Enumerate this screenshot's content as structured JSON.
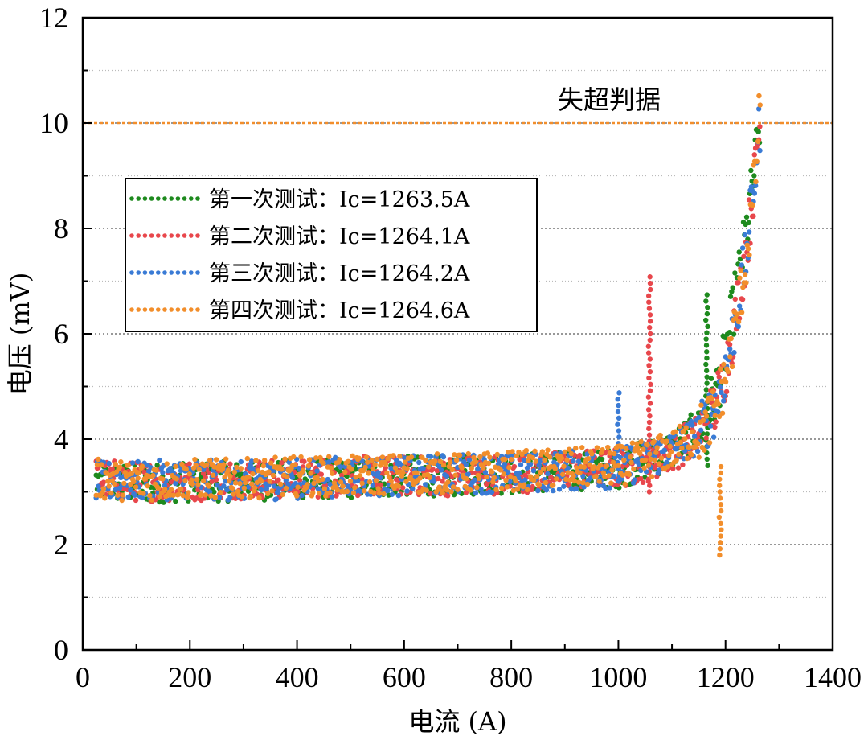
{
  "chart_data": {
    "type": "scatter",
    "title": "",
    "xlabel": "电流 (A)",
    "ylabel": "电压 (mV)",
    "xlim": [
      0,
      1400
    ],
    "ylim": [
      0,
      12
    ],
    "xticks": [
      0,
      200,
      400,
      600,
      800,
      1000,
      1200,
      1400
    ],
    "yticks": [
      0,
      2,
      4,
      6,
      8,
      10,
      12
    ],
    "xtick_labels": [
      "0",
      "200",
      "400",
      "600",
      "800",
      "1000",
      "1200",
      "1400"
    ],
    "ytick_labels": [
      "0",
      "2",
      "4",
      "6",
      "8",
      "10",
      "12"
    ],
    "grid": "horizontal dotted",
    "legend_position": "upper-left",
    "threshold": {
      "y": 10,
      "label": "失超判据",
      "color": "#f28e2b"
    },
    "series": [
      {
        "name": "第一次测试：Ic=1263.5A",
        "color": "#1e8a1e",
        "x": [
          25,
          100,
          200,
          300,
          400,
          500,
          600,
          700,
          800,
          900,
          1000,
          1050,
          1100,
          1150,
          1180,
          1200,
          1220,
          1240,
          1255,
          1263.5
        ],
        "y": [
          3.2,
          3.15,
          3.2,
          3.2,
          3.25,
          3.25,
          3.3,
          3.3,
          3.35,
          3.4,
          3.45,
          3.6,
          3.8,
          4.2,
          4.8,
          5.6,
          6.8,
          8.0,
          9.2,
          10.0
        ]
      },
      {
        "name": "第二次测试：Ic=1264.1A",
        "color": "#e8474c",
        "x": [
          25,
          100,
          200,
          300,
          400,
          500,
          600,
          700,
          800,
          900,
          1000,
          1050,
          1100,
          1150,
          1180,
          1200,
          1220,
          1240,
          1255,
          1264.1
        ],
        "y": [
          3.25,
          3.2,
          3.2,
          3.25,
          3.25,
          3.3,
          3.3,
          3.3,
          3.35,
          3.4,
          3.45,
          3.55,
          3.75,
          4.1,
          4.6,
          5.3,
          6.4,
          7.7,
          9.0,
          10.0
        ]
      },
      {
        "name": "第三次测试：Ic=1264.2A",
        "color": "#3a7bd5",
        "x": [
          25,
          100,
          200,
          300,
          400,
          500,
          600,
          700,
          800,
          900,
          1000,
          1050,
          1100,
          1150,
          1180,
          1200,
          1220,
          1240,
          1255,
          1264.2
        ],
        "y": [
          3.2,
          3.2,
          3.25,
          3.2,
          3.25,
          3.3,
          3.3,
          3.35,
          3.35,
          3.4,
          3.45,
          3.6,
          3.8,
          4.1,
          4.6,
          5.3,
          6.3,
          7.6,
          9.0,
          10.0
        ]
      },
      {
        "name": "第四次测试：Ic=1264.6A",
        "color": "#f28e2b",
        "x": [
          25,
          100,
          200,
          300,
          400,
          500,
          600,
          700,
          800,
          900,
          1000,
          1050,
          1100,
          1150,
          1180,
          1200,
          1220,
          1240,
          1255,
          1264.6
        ],
        "y": [
          3.25,
          3.2,
          3.25,
          3.25,
          3.3,
          3.3,
          3.35,
          3.35,
          3.4,
          3.45,
          3.5,
          3.6,
          3.8,
          4.1,
          4.5,
          5.2,
          6.2,
          7.5,
          8.9,
          10.3
        ]
      }
    ]
  }
}
